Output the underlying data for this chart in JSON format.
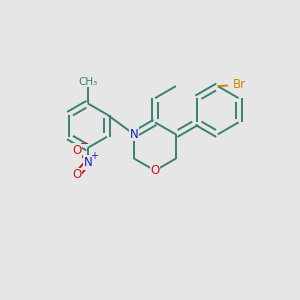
{
  "bg_color": "#e6e6e6",
  "bond_color": "#3a8070",
  "bond_width": 1.4,
  "N_color": "#1a1acc",
  "O_color": "#cc1a1a",
  "Br_color": "#cc8800",
  "fig_size": [
    3.0,
    3.0
  ],
  "dpi": 100,
  "xlim": [
    0,
    10
  ],
  "ylim": [
    0,
    10
  ]
}
